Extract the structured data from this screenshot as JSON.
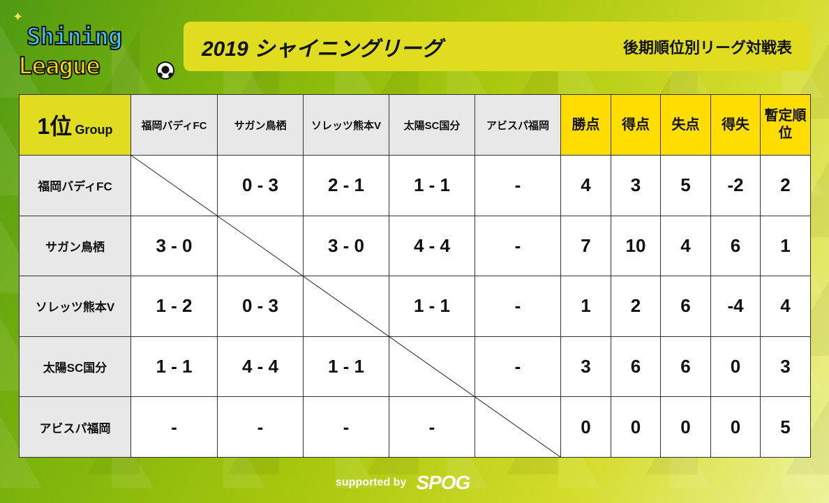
{
  "logo": {
    "line1": "Shining",
    "line2": "League"
  },
  "header": {
    "title": "2019 シャイニングリーグ",
    "subtitle": "後期順位別リーグ対戦表"
  },
  "table": {
    "corner": {
      "rank": "1位",
      "group": "Group"
    },
    "teams": [
      "福岡バディFC",
      "サガン鳥栖",
      "ソレッツ熊本V",
      "太陽SC国分",
      "アビスパ福岡"
    ],
    "stat_headers": [
      "勝点",
      "得点",
      "失点",
      "得失",
      "暫定順位"
    ],
    "rows": [
      {
        "team": "福岡バディFC",
        "results": [
          "",
          "0 - 3",
          "2 - 1",
          "1 - 1",
          "-"
        ],
        "stats": [
          "4",
          "3",
          "5",
          "-2",
          "2"
        ]
      },
      {
        "team": "サガン鳥栖",
        "results": [
          "3 - 0",
          "",
          "3 - 0",
          "4 - 4",
          "-"
        ],
        "stats": [
          "7",
          "10",
          "4",
          "6",
          "1"
        ]
      },
      {
        "team": "ソレッツ熊本V",
        "results": [
          "1 - 2",
          "0 - 3",
          "",
          "1 - 1",
          "-"
        ],
        "stats": [
          "1",
          "2",
          "6",
          "-4",
          "4"
        ]
      },
      {
        "team": "太陽SC国分",
        "results": [
          "1 - 1",
          "4 - 4",
          "1 - 1",
          "",
          "-"
        ],
        "stats": [
          "3",
          "6",
          "6",
          "0",
          "3"
        ]
      },
      {
        "team": "アビスパ福岡",
        "results": [
          "-",
          "-",
          "-",
          "-",
          ""
        ],
        "stats": [
          "0",
          "0",
          "0",
          "0",
          "5"
        ]
      }
    ]
  },
  "footer": {
    "supported_by": "supported by",
    "sponsor": "SPOG"
  },
  "colors": {
    "title_bar": "#e0dc1f",
    "stat_header": "#ffdd00",
    "label_cell": "#e8e8e8"
  }
}
